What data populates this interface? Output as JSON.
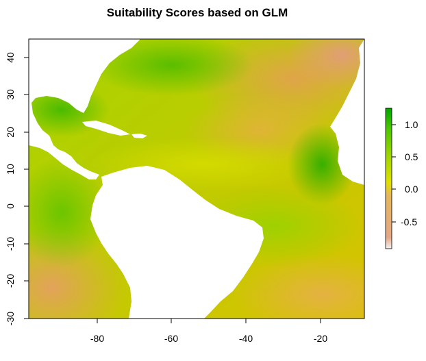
{
  "title": "Suitability Scores based on GLM",
  "map": {
    "lon_range": [
      -98,
      -8
    ],
    "lat_range": [
      -30,
      46
    ],
    "x_ticks": [
      -80,
      -60,
      -40,
      -20
    ],
    "y_ticks": [
      -30,
      -20,
      -10,
      0,
      10,
      20,
      30,
      40
    ],
    "land_color": "#ffffff",
    "ocean_colormap": [
      "#f2f2f2",
      "#e5a787",
      "#e5b65b",
      "#e0e000",
      "#9fd500",
      "#4ec700",
      "#00a600"
    ]
  },
  "legend": {
    "range": [
      -0.9,
      1.2
    ],
    "ticks": [
      "1.0",
      "0.5",
      "0.0",
      "-0.5"
    ],
    "tick_values": [
      1.0,
      0.5,
      0.0,
      -0.5
    ]
  }
}
